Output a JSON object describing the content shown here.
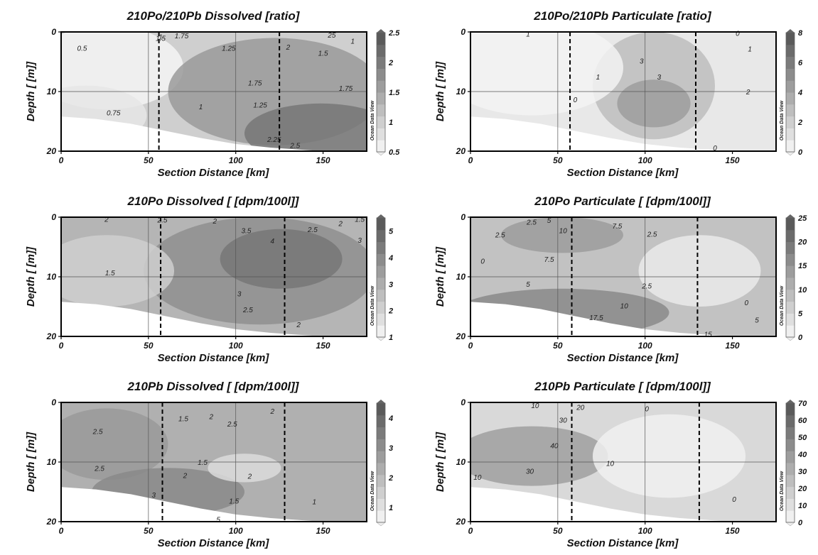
{
  "watermark": "Ocean Data View",
  "chart_data": [
    {
      "type": "heatmap",
      "title": "210Po/210Pb Dissolved [ratio]",
      "xlabel": "Section Distance [km]",
      "ylabel": "Depth [ [m]]",
      "xlim": [
        0,
        175
      ],
      "ylim": [
        20,
        0
      ],
      "xticks": [
        "0",
        "50",
        "100",
        "150"
      ],
      "yticks": [
        "0",
        "10",
        "20"
      ],
      "colorbar": {
        "min": 0.5,
        "max": 2.5,
        "ticks": [
          "0.5",
          "1",
          "1.5",
          "2",
          "2.5"
        ]
      },
      "section_lines_km": [
        56,
        125
      ],
      "contour_labels": [
        {
          "text": "0.5",
          "x": 12,
          "y": 2.7
        },
        {
          "text": "0.75",
          "x": 30,
          "y": 13.5
        },
        {
          "text": "1",
          "x": 57,
          "y": 0.8
        },
        {
          "text": "1.5",
          "x": 57,
          "y": 1.0
        },
        {
          "text": "1.75",
          "x": 69,
          "y": 0.6
        },
        {
          "text": "1.25",
          "x": 96,
          "y": 2.7
        },
        {
          "text": "1.75",
          "x": 111,
          "y": 8.5
        },
        {
          "text": "1.25",
          "x": 114,
          "y": 12.2
        },
        {
          "text": "1",
          "x": 80,
          "y": 12.5
        },
        {
          "text": "2",
          "x": 130,
          "y": 2.5
        },
        {
          "text": "1.75",
          "x": 163,
          "y": 9.4
        },
        {
          "text": "1.5",
          "x": 150,
          "y": 3.5
        },
        {
          "text": "2.25",
          "x": 122,
          "y": 18.0
        },
        {
          "text": "2.5",
          "x": 134,
          "y": 19.0
        },
        {
          "text": "25",
          "x": 155,
          "y": 0.5
        },
        {
          "text": "1",
          "x": 167,
          "y": 1.5
        }
      ]
    },
    {
      "type": "heatmap",
      "title": "210Po/210Pb Particulate [ratio]",
      "xlabel": "Section Distance [km]",
      "ylabel": "Depth [ [m]]",
      "xlim": [
        0,
        175
      ],
      "ylim": [
        20,
        0
      ],
      "xticks": [
        "0",
        "50",
        "100",
        "150"
      ],
      "yticks": [
        "0",
        "10",
        "20"
      ],
      "colorbar": {
        "min": 0,
        "max": 8,
        "ticks": [
          "0",
          "2",
          "4",
          "6",
          "8"
        ]
      },
      "section_lines_km": [
        57,
        129
      ],
      "contour_labels": [
        {
          "text": "1",
          "x": 33,
          "y": 0.3
        },
        {
          "text": "0",
          "x": 60,
          "y": 11.3
        },
        {
          "text": "1",
          "x": 73,
          "y": 7.5
        },
        {
          "text": "3",
          "x": 98,
          "y": 4.8
        },
        {
          "text": "3",
          "x": 108,
          "y": 7.5
        },
        {
          "text": "2",
          "x": 159,
          "y": 10.0
        },
        {
          "text": "0",
          "x": 140,
          "y": 19.4
        },
        {
          "text": "0",
          "x": 153,
          "y": 0.2
        },
        {
          "text": "1",
          "x": 160,
          "y": 2.8
        }
      ]
    },
    {
      "type": "heatmap",
      "title": "210Po Dissolved [ [dpm/100l]]",
      "xlabel": "Section Distance [km]",
      "ylabel": "Depth [ [m]]",
      "xlim": [
        0,
        175
      ],
      "ylim": [
        20,
        0
      ],
      "xticks": [
        "0",
        "50",
        "100",
        "150"
      ],
      "yticks": [
        "0",
        "10",
        "20"
      ],
      "colorbar": {
        "min": 1,
        "max": 5.5,
        "ticks": [
          "1",
          "2",
          "3",
          "4",
          "5"
        ]
      },
      "section_lines_km": [
        57,
        128
      ],
      "contour_labels": [
        {
          "text": "2",
          "x": 26,
          "y": 0.3
        },
        {
          "text": "2.5",
          "x": 58,
          "y": 0.4
        },
        {
          "text": "2",
          "x": 88,
          "y": 0.6
        },
        {
          "text": "3.5",
          "x": 106,
          "y": 2.2
        },
        {
          "text": "4",
          "x": 121,
          "y": 3.9
        },
        {
          "text": "2.5",
          "x": 144,
          "y": 2.0
        },
        {
          "text": "2",
          "x": 160,
          "y": 1.0
        },
        {
          "text": "1.5",
          "x": 171,
          "y": 0.3
        },
        {
          "text": "3",
          "x": 171,
          "y": 3.8
        },
        {
          "text": "1.5",
          "x": 28,
          "y": 9.3
        },
        {
          "text": "3",
          "x": 102,
          "y": 12.8
        },
        {
          "text": "2.5",
          "x": 107,
          "y": 15.5
        },
        {
          "text": "2",
          "x": 136,
          "y": 18.0
        }
      ]
    },
    {
      "type": "heatmap",
      "title": "210Po Particulate [ [dpm/100l]]",
      "xlabel": "Section Distance [km]",
      "ylabel": "Depth [ [m]]",
      "xlim": [
        0,
        175
      ],
      "ylim": [
        20,
        0
      ],
      "xticks": [
        "0",
        "50",
        "100",
        "150"
      ],
      "yticks": [
        "0",
        "10",
        "20"
      ],
      "colorbar": {
        "min": 0,
        "max": 25,
        "ticks": [
          "0",
          "5",
          "10",
          "15",
          "20",
          "25"
        ]
      },
      "section_lines_km": [
        58,
        130
      ],
      "contour_labels": [
        {
          "text": "2.5",
          "x": 35,
          "y": 0.8
        },
        {
          "text": "5",
          "x": 45,
          "y": 0.5
        },
        {
          "text": "10",
          "x": 53,
          "y": 2.2
        },
        {
          "text": "7.5",
          "x": 84,
          "y": 1.4
        },
        {
          "text": "2.5",
          "x": 104,
          "y": 2.8
        },
        {
          "text": "2.5",
          "x": 17,
          "y": 2.9
        },
        {
          "text": "0",
          "x": 7,
          "y": 7.3
        },
        {
          "text": "7.5",
          "x": 45,
          "y": 7.0
        },
        {
          "text": "5",
          "x": 33,
          "y": 11.2
        },
        {
          "text": "2.5",
          "x": 101,
          "y": 11.5
        },
        {
          "text": "10",
          "x": 88,
          "y": 14.8
        },
        {
          "text": "17.5",
          "x": 72,
          "y": 16.8
        },
        {
          "text": "0",
          "x": 158,
          "y": 14.3
        },
        {
          "text": "5",
          "x": 164,
          "y": 17.2
        },
        {
          "text": "15",
          "x": 136,
          "y": 19.6
        }
      ]
    },
    {
      "type": "heatmap",
      "title": "210Pb Dissolved [ [dpm/100l]]",
      "xlabel": "Section Distance [km]",
      "ylabel": "Depth [ [m]]",
      "xlim": [
        0,
        175
      ],
      "ylim": [
        20,
        0
      ],
      "xticks": [
        "0",
        "50",
        "100",
        "150"
      ],
      "yticks": [
        "0",
        "10",
        "20"
      ],
      "colorbar": {
        "min": 0.5,
        "max": 4.5,
        "ticks": [
          "1",
          "2",
          "3",
          "4"
        ]
      },
      "section_lines_km": [
        58,
        128
      ],
      "contour_labels": [
        {
          "text": "2.5",
          "x": 21,
          "y": 4.8
        },
        {
          "text": "2.5",
          "x": 22,
          "y": 11.0
        },
        {
          "text": "1.5",
          "x": 70,
          "y": 2.7
        },
        {
          "text": "2",
          "x": 86,
          "y": 2.3
        },
        {
          "text": "2.5",
          "x": 98,
          "y": 3.6
        },
        {
          "text": "2",
          "x": 121,
          "y": 1.4
        },
        {
          "text": "1.5",
          "x": 81,
          "y": 10.0
        },
        {
          "text": "2",
          "x": 71,
          "y": 12.2
        },
        {
          "text": "3",
          "x": 53,
          "y": 15.5
        },
        {
          "text": "2",
          "x": 108,
          "y": 12.3
        },
        {
          "text": "1.5",
          "x": 99,
          "y": 16.5
        },
        {
          "text": "1",
          "x": 145,
          "y": 16.6
        },
        {
          "text": "5",
          "x": 90,
          "y": 19.6
        }
      ]
    },
    {
      "type": "heatmap",
      "title": "210Pb Particulate [ [dpm/100l]]",
      "xlabel": "Section Distance [km]",
      "ylabel": "Depth [ [m]]",
      "xlim": [
        0,
        175
      ],
      "ylim": [
        20,
        0
      ],
      "xticks": [
        "0",
        "50",
        "100",
        "150"
      ],
      "yticks": [
        "0",
        "10",
        "20"
      ],
      "colorbar": {
        "min": 0,
        "max": 70,
        "ticks": [
          "0",
          "10",
          "20",
          "30",
          "40",
          "50",
          "60",
          "70"
        ]
      },
      "section_lines_km": [
        58,
        131
      ],
      "contour_labels": [
        {
          "text": "10",
          "x": 37,
          "y": 0.5
        },
        {
          "text": "30",
          "x": 53,
          "y": 2.9
        },
        {
          "text": "20",
          "x": 63,
          "y": 0.8
        },
        {
          "text": "0",
          "x": 101,
          "y": 1.0
        },
        {
          "text": "40",
          "x": 48,
          "y": 7.2
        },
        {
          "text": "30",
          "x": 34,
          "y": 11.5
        },
        {
          "text": "10",
          "x": 80,
          "y": 10.2
        },
        {
          "text": "10",
          "x": 4,
          "y": 12.5
        },
        {
          "text": "0",
          "x": 151,
          "y": 16.2
        }
      ]
    }
  ]
}
